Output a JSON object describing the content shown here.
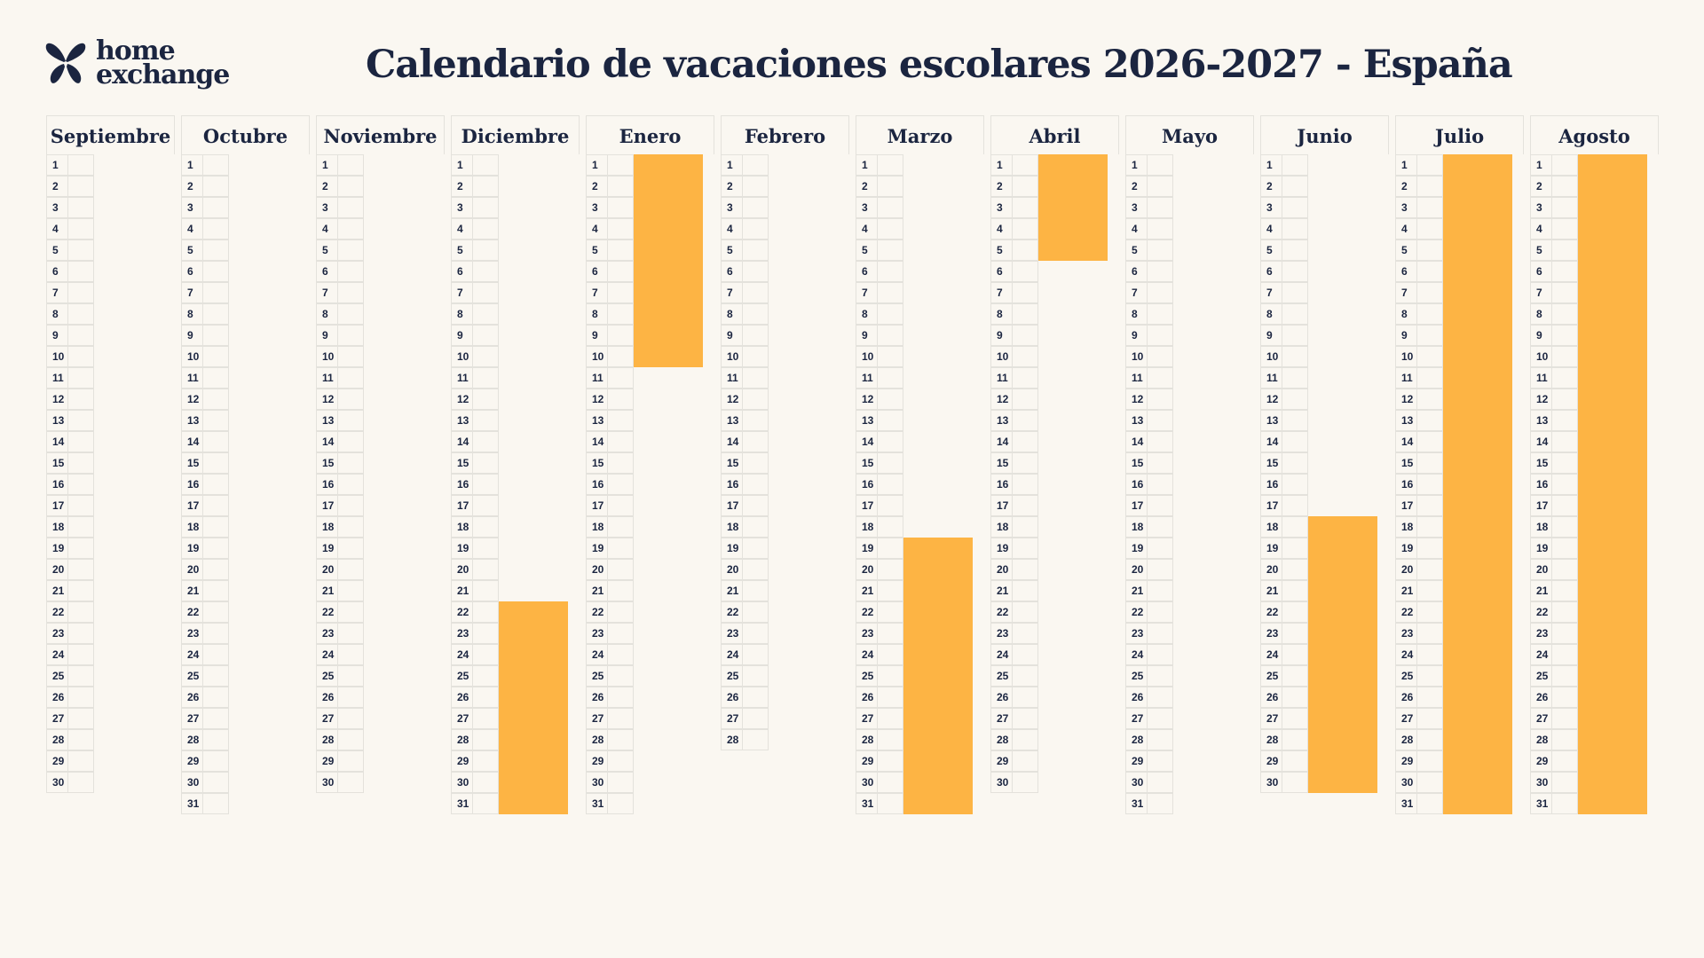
{
  "brand": {
    "line1": "home",
    "line2": "exchange",
    "logo_icon": "butterfly-logo-icon"
  },
  "title": "Calendario de vacaciones escolares 2026-2027 - España",
  "colors": {
    "background": "#faf7f1",
    "text": "#1b2540",
    "vacation": "#fdb444",
    "grid": "#e4e2dc"
  },
  "months": [
    {
      "name": "Septiembre",
      "days": 30,
      "vacations": []
    },
    {
      "name": "Octubre",
      "days": 31,
      "vacations": []
    },
    {
      "name": "Noviembre",
      "days": 30,
      "vacations": []
    },
    {
      "name": "Diciembre",
      "days": 31,
      "vacations": [
        [
          22,
          31
        ]
      ]
    },
    {
      "name": "Enero",
      "days": 31,
      "vacations": [
        [
          1,
          10
        ]
      ]
    },
    {
      "name": "Febrero",
      "days": 28,
      "vacations": []
    },
    {
      "name": "Marzo",
      "days": 31,
      "vacations": [
        [
          19,
          31
        ]
      ]
    },
    {
      "name": "Abril",
      "days": 30,
      "vacations": [
        [
          1,
          5
        ]
      ]
    },
    {
      "name": "Mayo",
      "days": 31,
      "vacations": []
    },
    {
      "name": "Junio",
      "days": 30,
      "vacations": [
        [
          18,
          30
        ]
      ]
    },
    {
      "name": "Julio",
      "days": 31,
      "vacations": [
        [
          1,
          31
        ]
      ]
    },
    {
      "name": "Agosto",
      "days": 31,
      "vacations": [
        [
          1,
          31
        ]
      ]
    }
  ]
}
